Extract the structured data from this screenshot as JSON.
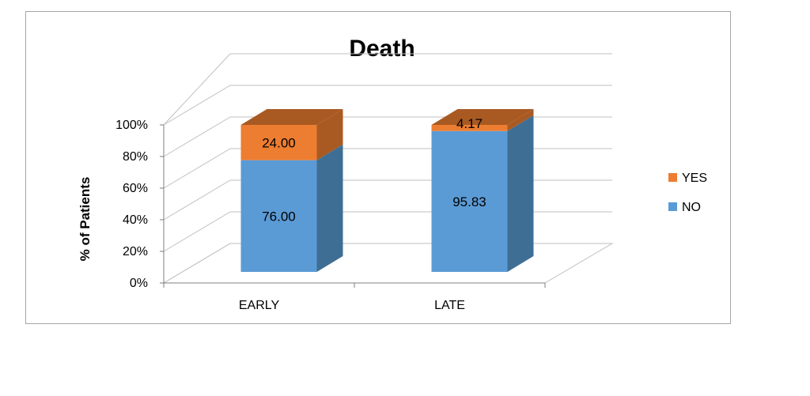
{
  "chart_data": {
    "type": "bar",
    "stacked": true,
    "three_d": true,
    "title": "Death",
    "ylabel": "% of Patients",
    "xlabel": "",
    "ylim": [
      0,
      100
    ],
    "yticks": [
      "0%",
      "20%",
      "40%",
      "60%",
      "80%",
      "100%"
    ],
    "grid": true,
    "legend_position": "right",
    "categories": [
      "EARLY",
      "LATE"
    ],
    "series": [
      {
        "name": "NO",
        "values": [
          76.0,
          95.83
        ],
        "labels": [
          "76.00",
          "95.83"
        ],
        "color": "#5b9bd5",
        "side_color": "#3f6e95"
      },
      {
        "name": "YES",
        "values": [
          24.0,
          4.17
        ],
        "labels": [
          "24.00",
          "4.17"
        ],
        "color": "#ed7d31",
        "side_color": "#a95a22"
      }
    ],
    "legend_order": [
      "YES",
      "NO"
    ]
  }
}
